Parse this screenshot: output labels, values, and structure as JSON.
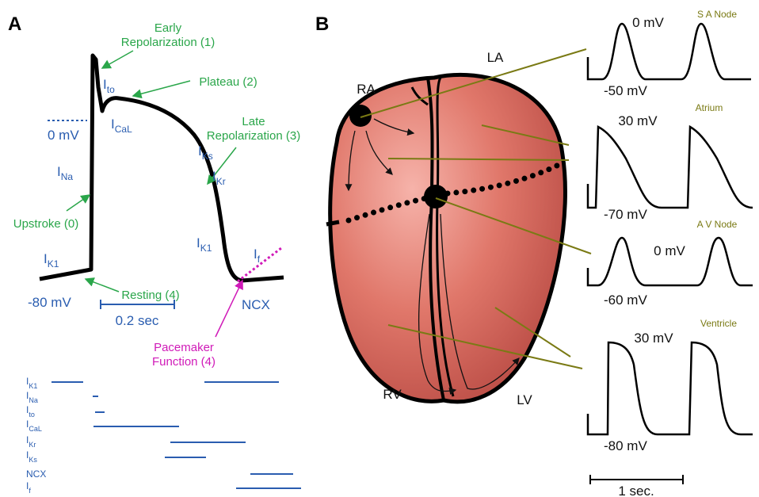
{
  "panel_a": {
    "letter": "A",
    "zero_label": "0 mV",
    "rest_label": "-80 mV",
    "scale_label": "0.2 sec",
    "currents_on_trace": [
      {
        "symbol": "I",
        "sub": "to"
      },
      {
        "symbol": "I",
        "sub": "CaL"
      },
      {
        "symbol": "I",
        "sub": "Na"
      },
      {
        "symbol": "I",
        "sub": "K1"
      },
      {
        "symbol": "I",
        "sub": "Ks"
      },
      {
        "symbol": "I",
        "sub": "Kr"
      },
      {
        "symbol": "I",
        "sub": "K1"
      },
      {
        "symbol": "I",
        "sub": "f"
      }
    ],
    "ncx_label": "NCX",
    "phases": [
      {
        "lines": [
          "Early",
          "Repolarization (1)"
        ]
      },
      {
        "lines": [
          "Plateau (2)"
        ]
      },
      {
        "lines": [
          "Late",
          "Repolarization (3)"
        ]
      },
      {
        "lines": [
          "Upstroke (0)"
        ]
      },
      {
        "lines": [
          "Resting (4)"
        ]
      }
    ],
    "pacemaker": [
      "Pacemaker",
      "Function (4)"
    ],
    "current_list": [
      {
        "symbol": "I",
        "sub": "K1"
      },
      {
        "symbol": "I",
        "sub": "Na"
      },
      {
        "symbol": "I",
        "sub": "to"
      },
      {
        "symbol": "I",
        "sub": "CaL"
      },
      {
        "symbol": "I",
        "sub": "Kr"
      },
      {
        "symbol": "I",
        "sub": "Ks"
      },
      {
        "symbol": "NCX",
        "sub": ""
      },
      {
        "symbol": "I",
        "sub": "f"
      }
    ]
  },
  "panel_b": {
    "letter": "B",
    "chambers": [
      "RA",
      "LA",
      "RV",
      "LV"
    ],
    "traces": [
      {
        "name": "S A Node",
        "top": "0 mV",
        "bottom": "-50 mV"
      },
      {
        "name": "Atrium",
        "top": "30 mV",
        "bottom": "-70 mV"
      },
      {
        "name": "A V Node",
        "top": "0 mV",
        "bottom": "-60 mV"
      },
      {
        "name": "Ventricle",
        "top": "30 mV",
        "bottom": "-80 mV"
      }
    ],
    "scale_label": "1 sec."
  }
}
